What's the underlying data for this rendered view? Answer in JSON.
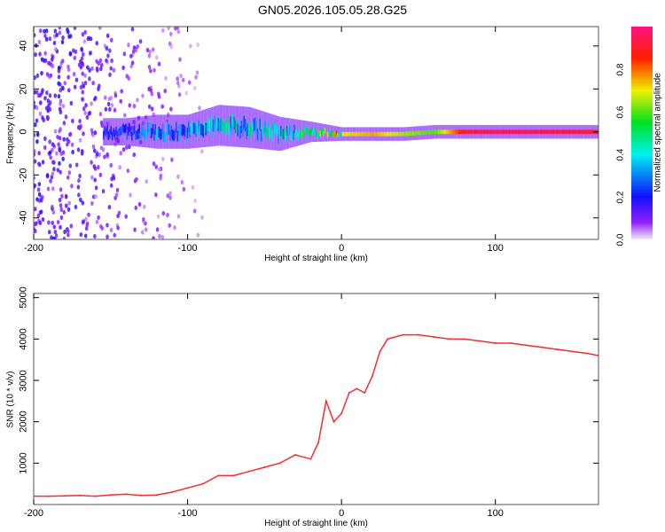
{
  "title": "GN05.2026.105.05.28.G25",
  "chart_data": [
    {
      "type": "heatmap",
      "xlabel": "Height of straight line (km)",
      "ylabel": "Frequency (Hz)",
      "xlim": [
        -200,
        167
      ],
      "ylim": [
        -50,
        49
      ],
      "xticks": [
        -200,
        -100,
        0,
        100
      ],
      "yticks": [
        -40,
        -20,
        0,
        20,
        40
      ],
      "colorbar": {
        "label": "Normalized spectral amplitude",
        "ticks": [
          "0.0",
          "0.2",
          "0.4",
          "0.6",
          "0.8"
        ],
        "range": [
          0,
          1
        ]
      },
      "noise_region": {
        "x": [
          -200,
          -90
        ],
        "amplitude": 0.12
      },
      "ridge": [
        {
          "x": -155,
          "freq": 0,
          "amp": 0.2,
          "spread_hz": 4
        },
        {
          "x": -140,
          "freq": 0,
          "amp": 0.25,
          "spread_hz": 4
        },
        {
          "x": -120,
          "freq": 0,
          "amp": 0.3,
          "spread_hz": 5
        },
        {
          "x": -100,
          "freq": 0,
          "amp": 0.32,
          "spread_hz": 5
        },
        {
          "x": -80,
          "freq": 3,
          "amp": 0.4,
          "spread_hz": 6
        },
        {
          "x": -60,
          "freq": 2,
          "amp": 0.42,
          "spread_hz": 6
        },
        {
          "x": -40,
          "freq": -1,
          "amp": 0.4,
          "spread_hz": 5
        },
        {
          "x": -20,
          "freq": 0,
          "amp": 0.5,
          "spread_hz": 3
        },
        {
          "x": 0,
          "freq": -1,
          "amp": 0.7,
          "spread_hz": 2
        },
        {
          "x": 20,
          "freq": -1,
          "amp": 0.75,
          "spread_hz": 2
        },
        {
          "x": 40,
          "freq": -1,
          "amp": 0.65,
          "spread_hz": 2
        },
        {
          "x": 60,
          "freq": 0,
          "amp": 0.6,
          "spread_hz": 2
        },
        {
          "x": 80,
          "freq": 0,
          "amp": 0.9,
          "spread_hz": 2
        },
        {
          "x": 100,
          "freq": 0,
          "amp": 0.95,
          "spread_hz": 2
        },
        {
          "x": 120,
          "freq": 0,
          "amp": 0.95,
          "spread_hz": 2
        },
        {
          "x": 140,
          "freq": 0,
          "amp": 0.92,
          "spread_hz": 2
        },
        {
          "x": 167,
          "freq": 0,
          "amp": 0.9,
          "spread_hz": 2
        }
      ]
    },
    {
      "type": "line",
      "xlabel": "Height of straight line (km)",
      "ylabel": "SNR (10 * v/v)",
      "xlim": [
        -200,
        167
      ],
      "ylim": [
        0,
        5100
      ],
      "xticks": [
        -200,
        -100,
        0,
        100
      ],
      "yticks": [
        1000,
        2000,
        3000,
        4000,
        5000
      ],
      "color": "#f03030",
      "series": [
        {
          "name": "SNR",
          "x": [
            -200,
            -190,
            -180,
            -170,
            -160,
            -150,
            -140,
            -130,
            -120,
            -110,
            -100,
            -90,
            -80,
            -70,
            -60,
            -50,
            -40,
            -30,
            -20,
            -15,
            -10,
            -5,
            0,
            5,
            10,
            15,
            20,
            25,
            30,
            40,
            50,
            60,
            70,
            80,
            90,
            100,
            110,
            120,
            130,
            140,
            150,
            160,
            167
          ],
          "values": [
            200,
            200,
            210,
            220,
            200,
            230,
            250,
            220,
            230,
            300,
            400,
            500,
            700,
            700,
            800,
            900,
            1000,
            1200,
            1100,
            1500,
            2500,
            2000,
            2200,
            2700,
            2800,
            2700,
            3100,
            3700,
            4000,
            4100,
            4100,
            4050,
            4000,
            4000,
            3950,
            3900,
            3900,
            3850,
            3800,
            3750,
            3700,
            3650,
            3600
          ]
        }
      ]
    }
  ]
}
